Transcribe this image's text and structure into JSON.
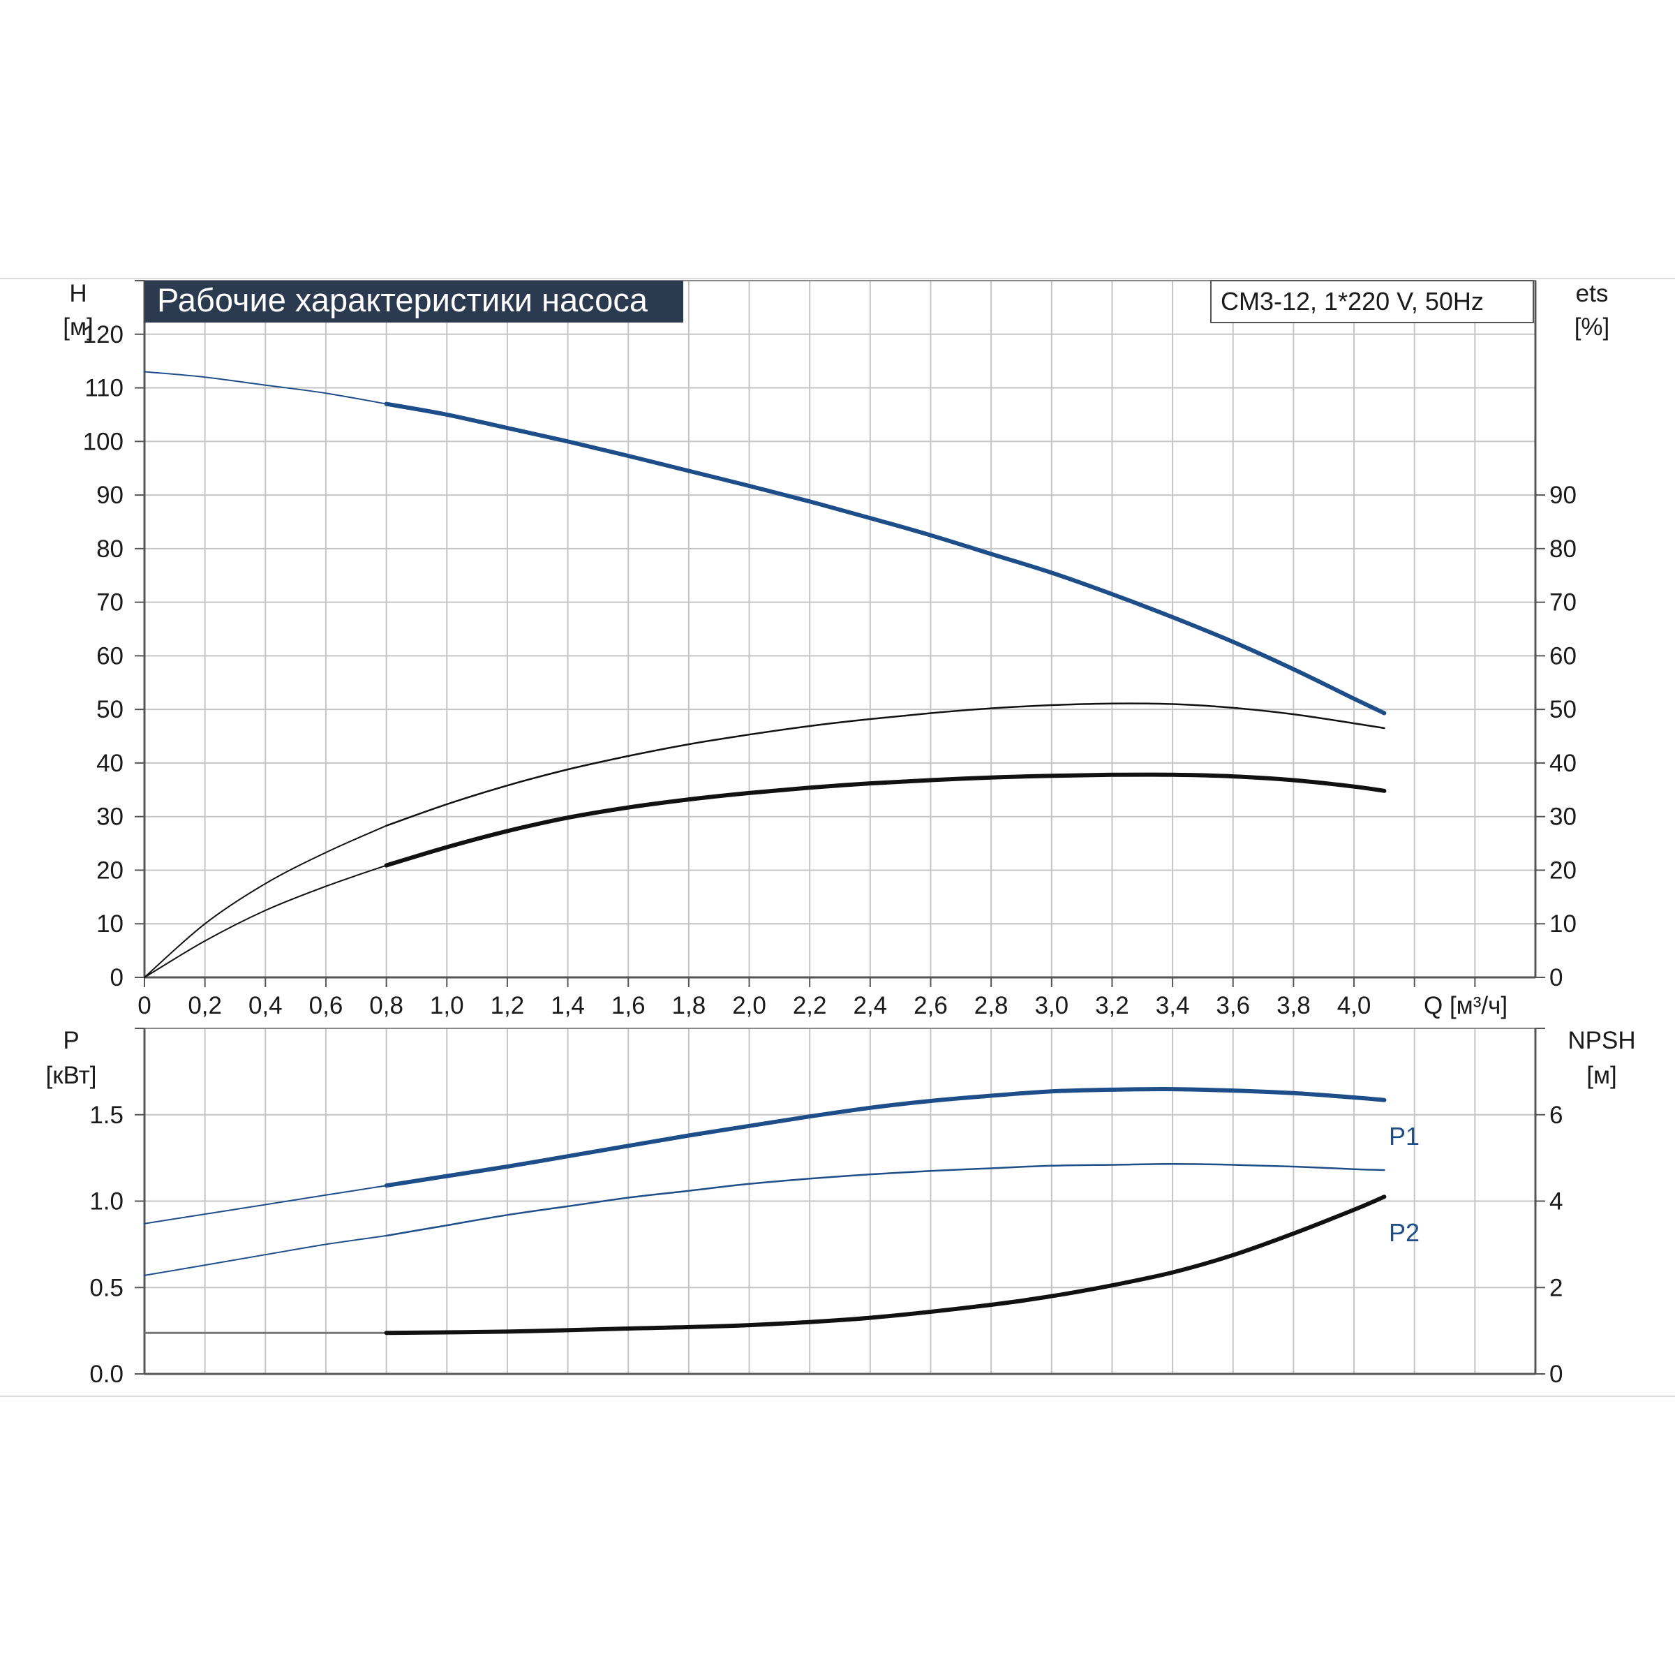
{
  "chart_data": [
    {
      "type": "line",
      "title": "Рабочие характеристики насоса",
      "subtitle": "CM3-12, 1*220 V, 50Hz",
      "xlabel": "Q [м³/ч]",
      "ylabel_left": [
        "H",
        "[м]"
      ],
      "ylabel_right": [
        "ets",
        "[%]"
      ],
      "xlim": [
        0,
        4.6
      ],
      "ylim_left": [
        0,
        130
      ],
      "ylim_right": [
        0,
        130
      ],
      "x_ticks": [
        "0",
        "0,2",
        "0,4",
        "0,6",
        "0,8",
        "1,0",
        "1,2",
        "1,4",
        "1,6",
        "1,8",
        "2,0",
        "2,2",
        "2,4",
        "2,6",
        "2,8",
        "3,0",
        "3,2",
        "3,4",
        "3,6",
        "3,8",
        "4,0"
      ],
      "x_tick_values": [
        0,
        0.2,
        0.4,
        0.6,
        0.8,
        1.0,
        1.2,
        1.4,
        1.6,
        1.8,
        2.0,
        2.2,
        2.4,
        2.6,
        2.8,
        3.0,
        3.2,
        3.4,
        3.6,
        3.8,
        4.0
      ],
      "y_ticks_left": [
        0,
        10,
        20,
        30,
        40,
        50,
        60,
        70,
        80,
        90,
        100,
        110,
        120
      ],
      "y_ticks_right": [
        0,
        10,
        20,
        30,
        40,
        50,
        60,
        70,
        80,
        90
      ],
      "grid": true,
      "series": [
        {
          "axis": "left",
          "color": "#1d4e89",
          "style": "thick",
          "x": [
            0,
            0.2,
            0.4,
            0.6,
            0.8,
            1.0,
            1.2,
            1.4,
            1.6,
            1.8,
            2.0,
            2.2,
            2.4,
            2.6,
            2.8,
            3.0,
            3.2,
            3.4,
            3.6,
            3.8,
            4.0,
            4.1
          ],
          "y": [
            113,
            112,
            110.5,
            109,
            107,
            105,
            102.5,
            100,
            97.3,
            94.5,
            91.7,
            88.8,
            85.7,
            82.5,
            79,
            75.5,
            71.5,
            67.2,
            62.6,
            57.5,
            52,
            49.3
          ]
        },
        {
          "axis": "right",
          "color": "#111111",
          "style": "thin",
          "x": [
            0,
            0.2,
            0.4,
            0.6,
            0.8,
            1.0,
            1.2,
            1.4,
            1.6,
            1.8,
            2.0,
            2.2,
            2.4,
            2.6,
            2.8,
            3.0,
            3.2,
            3.4,
            3.6,
            3.8,
            4.0,
            4.1
          ],
          "y": [
            0,
            10,
            17.5,
            23.3,
            28.3,
            32.3,
            35.8,
            38.8,
            41.3,
            43.5,
            45.3,
            46.9,
            48.2,
            49.3,
            50.2,
            50.8,
            51.1,
            51,
            50.3,
            49.1,
            47.4,
            46.5
          ]
        },
        {
          "axis": "right",
          "color": "#111111",
          "style": "thick",
          "x": [
            0,
            0.2,
            0.4,
            0.6,
            0.8,
            1.0,
            1.2,
            1.4,
            1.6,
            1.8,
            2.0,
            2.2,
            2.4,
            2.6,
            2.8,
            3.0,
            3.2,
            3.4,
            3.6,
            3.8,
            4.0,
            4.1
          ],
          "y": [
            0,
            6.8,
            12.5,
            17.0,
            20.9,
            24.3,
            27.3,
            29.8,
            31.7,
            33.2,
            34.4,
            35.4,
            36.2,
            36.8,
            37.3,
            37.6,
            37.8,
            37.8,
            37.5,
            36.8,
            35.6,
            34.8
          ]
        }
      ]
    },
    {
      "type": "line",
      "ylabel_left": [
        "P",
        "[кВт]"
      ],
      "ylabel_right": [
        "NPSH",
        "[м]"
      ],
      "xlim": [
        0,
        4.6
      ],
      "ylim_left": [
        0,
        2.0
      ],
      "ylim_right": [
        0,
        8
      ],
      "y_ticks_left": [
        "0.0",
        "0.5",
        "1.0",
        "1.5"
      ],
      "y_tick_values_left": [
        0,
        0.5,
        1.0,
        1.5
      ],
      "y_ticks_right": [
        0,
        2,
        4,
        6
      ],
      "grid": true,
      "series": [
        {
          "name": "P1",
          "axis": "left",
          "color": "#1d4e89",
          "style": "thick",
          "x": [
            0,
            0.2,
            0.4,
            0.6,
            0.8,
            1.0,
            1.2,
            1.4,
            1.6,
            1.8,
            2.0,
            2.2,
            2.4,
            2.6,
            2.8,
            3.0,
            3.2,
            3.4,
            3.6,
            3.8,
            4.0,
            4.1
          ],
          "y": [
            0.87,
            0.925,
            0.98,
            1.035,
            1.09,
            1.145,
            1.2,
            1.26,
            1.32,
            1.38,
            1.435,
            1.49,
            1.54,
            1.58,
            1.61,
            1.635,
            1.645,
            1.648,
            1.64,
            1.625,
            1.6,
            1.585
          ]
        },
        {
          "name": "P2",
          "axis": "left",
          "color": "#1d4e89",
          "style": "thin",
          "x": [
            0,
            0.2,
            0.4,
            0.6,
            0.8,
            1.0,
            1.2,
            1.4,
            1.6,
            1.8,
            2.0,
            2.2,
            2.4,
            2.6,
            2.8,
            3.0,
            3.2,
            3.4,
            3.6,
            3.8,
            4.0,
            4.1
          ],
          "y": [
            0.57,
            0.63,
            0.69,
            0.75,
            0.8,
            0.86,
            0.92,
            0.97,
            1.02,
            1.06,
            1.1,
            1.13,
            1.155,
            1.175,
            1.19,
            1.205,
            1.21,
            1.215,
            1.21,
            1.2,
            1.185,
            1.18
          ]
        },
        {
          "name": "NPSH",
          "axis": "right",
          "color": "#111111",
          "style": "thick",
          "x": [
            0,
            0.8,
            1.2,
            1.6,
            2.0,
            2.4,
            2.8,
            3.0,
            3.2,
            3.4,
            3.6,
            3.8,
            4.0,
            4.1
          ],
          "y": [
            0.95,
            0.95,
            0.98,
            1.05,
            1.13,
            1.3,
            1.6,
            1.8,
            2.05,
            2.35,
            2.75,
            3.25,
            3.8,
            4.1
          ]
        }
      ]
    }
  ]
}
